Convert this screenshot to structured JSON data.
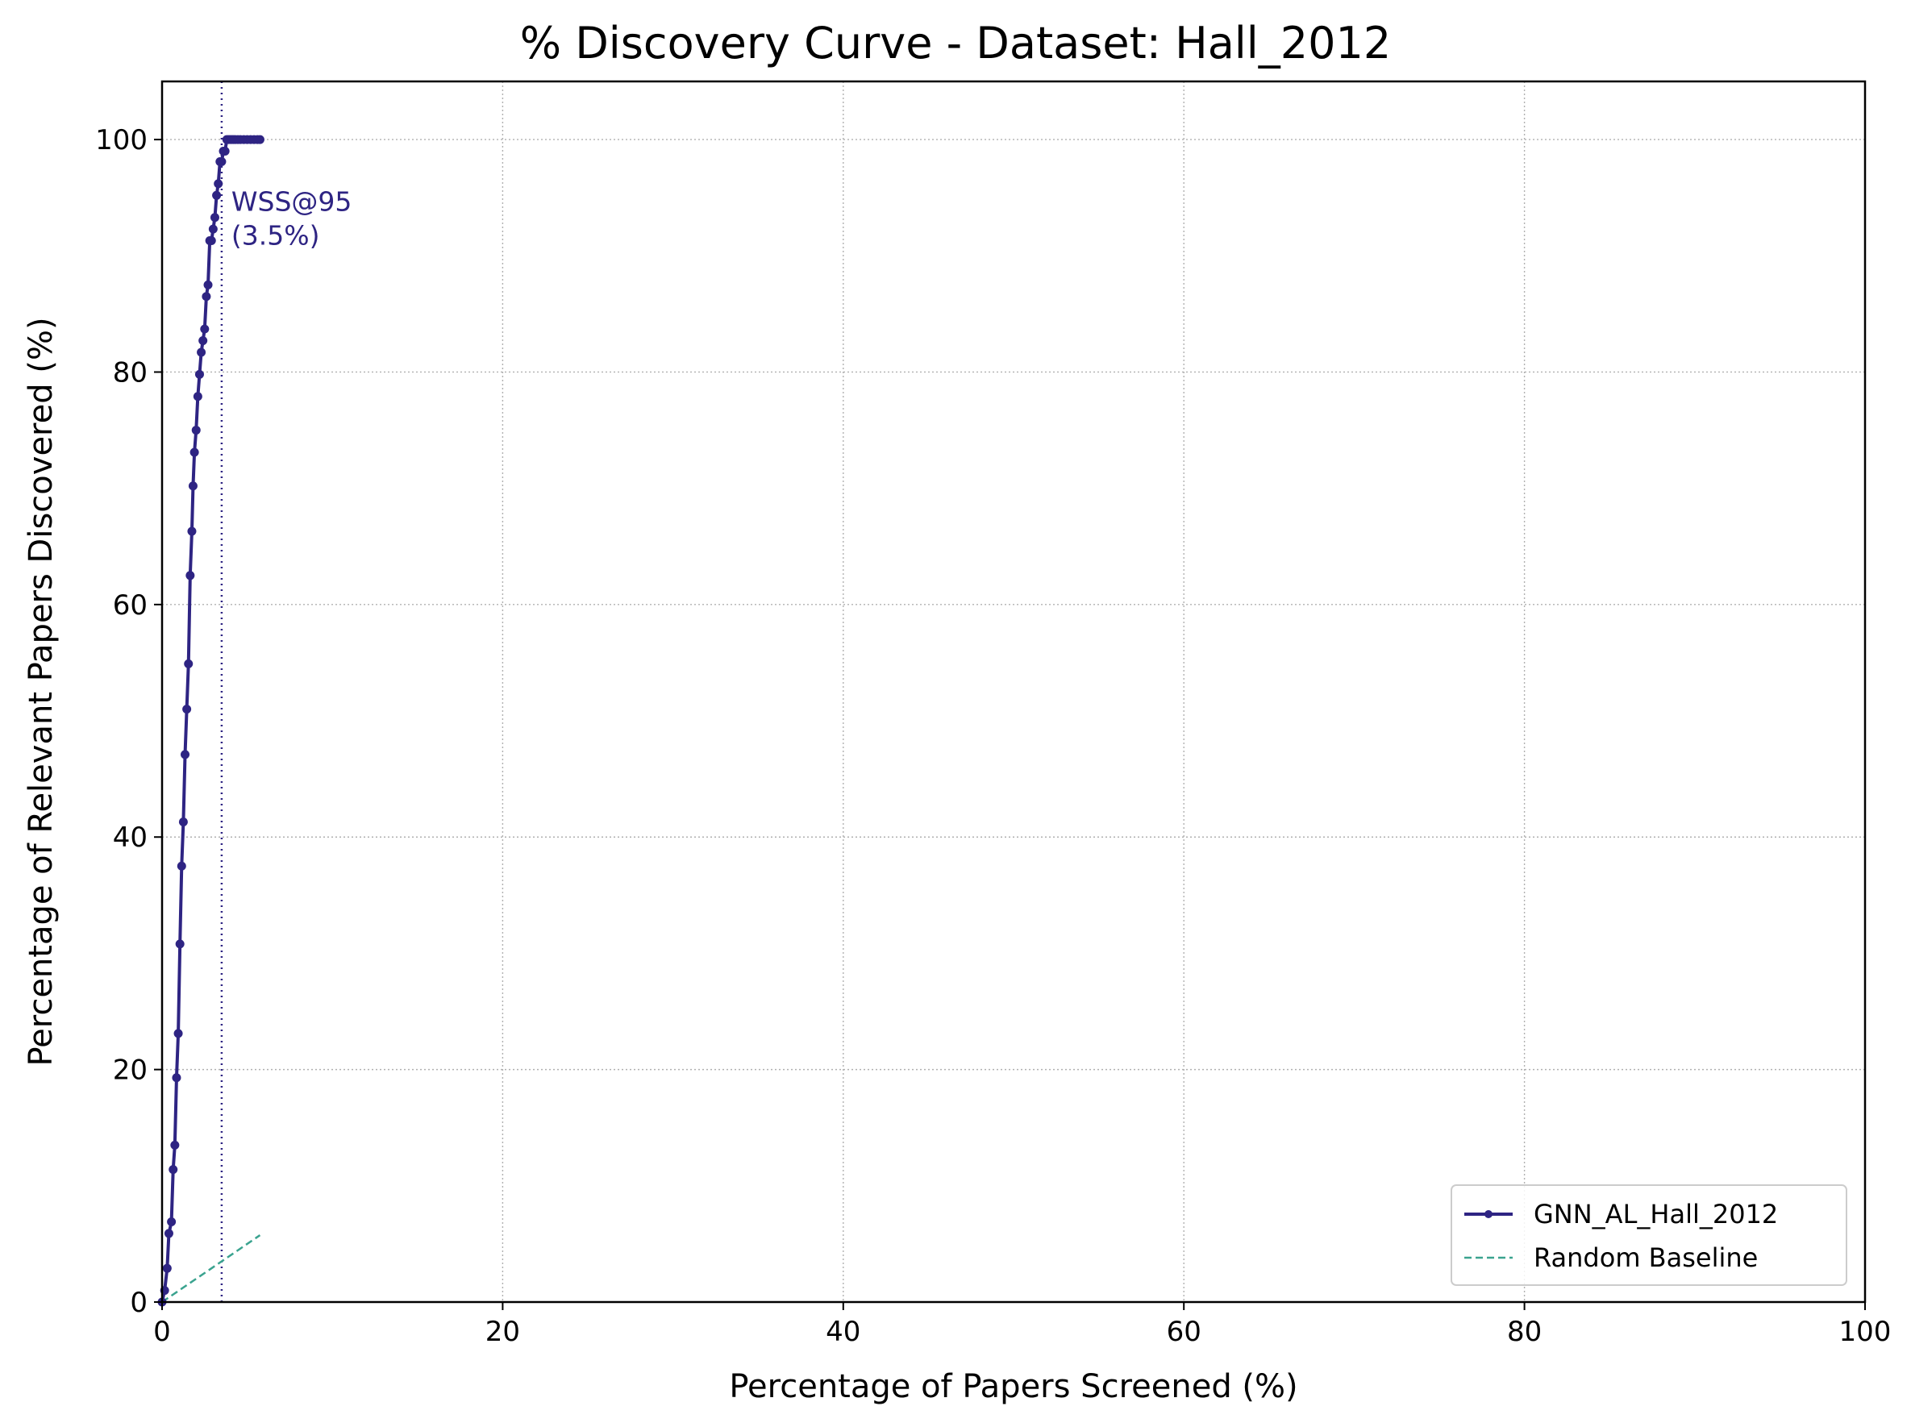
{
  "chart_data": {
    "type": "line",
    "title": "% Discovery Curve - Dataset: Hall_2012",
    "xlabel": "Percentage of Papers Screened (%)",
    "ylabel": "Percentage of Relevant Papers Discovered (%)",
    "xlim": [
      0,
      100
    ],
    "ylim": [
      0,
      105
    ],
    "xticks": [
      "0",
      "20",
      "40",
      "60",
      "80",
      "100"
    ],
    "yticks": [
      "0",
      "20",
      "40",
      "60",
      "80",
      "100"
    ],
    "grid": true,
    "legend_position": "bottom-right",
    "series": [
      {
        "name": "GNN_AL_Hall_2012",
        "color": "#2e2483",
        "style": "solid-with-markers",
        "x": [
          0.0,
          0.15,
          0.3,
          0.4,
          0.55,
          0.65,
          0.75,
          0.85,
          0.95,
          1.05,
          1.15,
          1.25,
          1.35,
          1.45,
          1.55,
          1.65,
          1.75,
          1.82,
          1.9,
          2.0,
          2.1,
          2.2,
          2.3,
          2.4,
          2.5,
          2.6,
          2.7,
          2.8,
          2.9,
          3.0,
          3.1,
          3.2,
          3.3,
          3.4,
          3.5,
          3.6,
          3.7,
          3.8,
          3.9,
          4.0,
          4.1,
          4.2,
          4.3,
          4.45,
          4.6,
          4.8,
          5.0,
          5.2,
          5.4,
          5.6,
          5.75
        ],
        "y": [
          0.0,
          1.0,
          2.9,
          5.9,
          6.9,
          11.4,
          13.5,
          19.3,
          23.1,
          30.8,
          37.5,
          41.3,
          47.1,
          51.0,
          54.9,
          62.5,
          66.3,
          70.2,
          73.1,
          75.0,
          77.9,
          79.8,
          81.7,
          82.7,
          83.7,
          86.5,
          87.5,
          91.3,
          91.3,
          92.3,
          93.3,
          95.2,
          96.2,
          98.1,
          98.1,
          99.0,
          99.0,
          100.0,
          100.0,
          100.0,
          100.0,
          100.0,
          100.0,
          100.0,
          100.0,
          100.0,
          100.0,
          100.0,
          100.0,
          100.0,
          100.0
        ]
      },
      {
        "name": "Random Baseline",
        "color": "#3aa38f",
        "style": "dashed",
        "x": [
          0,
          5.75
        ],
        "y": [
          0,
          5.75
        ]
      }
    ],
    "annotations": [
      {
        "text_line1": "WSS@95",
        "text_line2": "(3.5%)",
        "x": 3.5,
        "y": 91.5,
        "vline_x": 3.5,
        "color": "#2e2483"
      }
    ]
  }
}
